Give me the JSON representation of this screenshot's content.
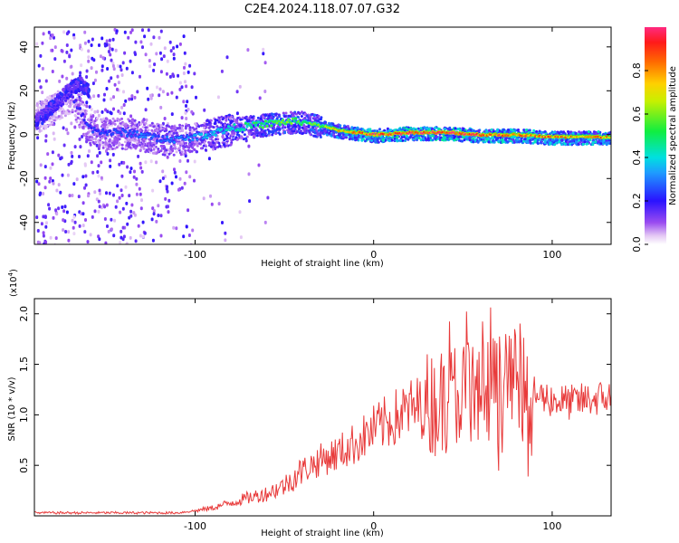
{
  "figure_title": "C2E4.2024.118.07.07.G32",
  "chart_data": [
    {
      "type": "heatmap",
      "title": "C2E4.2024.118.07.07.G32",
      "xlabel": "Height of straight line (km)",
      "ylabel": "Frequency (Hz)",
      "xlim": [
        -190,
        133
      ],
      "ylim": [
        -50,
        49
      ],
      "xticks": [
        -100,
        0,
        100
      ],
      "yticks": [
        -40,
        -20,
        0,
        20,
        40
      ],
      "colorbar": {
        "label": "Normalized spectral amplitude",
        "range": [
          0.0,
          1.0
        ],
        "ticks": [
          0.0,
          0.2,
          0.4,
          0.6,
          0.8
        ],
        "colormap": "rainbow (white/violet low, blue, cyan, green, yellow, orange, red high)"
      },
      "ridge": {
        "description": "dominant frequency ridge centered near 0 Hz",
        "x": [
          -190,
          -180,
          -170,
          -160,
          -150,
          -140,
          -130,
          -120,
          -110,
          -100,
          -90,
          -80,
          -70,
          -60,
          -50,
          -40,
          -30,
          -20,
          -10,
          0,
          20,
          40,
          60,
          80,
          100,
          120,
          133
        ],
        "y": [
          8,
          12,
          18,
          3,
          1,
          1,
          0,
          -2,
          -2,
          -1,
          1,
          3,
          4,
          5,
          6,
          6,
          4,
          2,
          1,
          0,
          1,
          1,
          0,
          0,
          -1,
          -1,
          -1
        ],
        "amplitude": [
          0.15,
          0.18,
          0.2,
          0.25,
          0.25,
          0.28,
          0.3,
          0.3,
          0.32,
          0.35,
          0.4,
          0.45,
          0.5,
          0.55,
          0.6,
          0.55,
          0.65,
          0.75,
          0.85,
          0.95,
          0.95,
          0.95,
          0.9,
          0.9,
          0.85,
          0.85,
          0.85
        ]
      },
      "secondary_branch": {
        "description": "upper branch at negative heights",
        "x": [
          -190,
          -185,
          -180,
          -175,
          -170,
          -165,
          -160
        ],
        "y": [
          6,
          10,
          14,
          18,
          22,
          24,
          20
        ]
      }
    },
    {
      "type": "line",
      "xlabel": "Height of straight line (km)",
      "ylabel": "SNR (10 * v/v)",
      "y_scale_label": "(x10",
      "y_scale_exp": "4",
      "y_scale_close": ")",
      "xlim": [
        -190,
        133
      ],
      "ylim": [
        0,
        2.15
      ],
      "xticks": [
        -100,
        0,
        100
      ],
      "yticks": [
        0.5,
        1.0,
        1.5,
        2.0
      ],
      "ytick_labels": [
        "0.5",
        "1.0",
        "1.5",
        "2.0"
      ],
      "series": [
        {
          "color": "#e83a3a",
          "x": [
            -190,
            -170,
            -150,
            -130,
            -110,
            -100,
            -90,
            -80,
            -70,
            -60,
            -50,
            -40,
            -30,
            -20,
            -10,
            0,
            10,
            20,
            30,
            40,
            50,
            60,
            70,
            80,
            90,
            100,
            110,
            120,
            133
          ],
          "y": [
            0.03,
            0.03,
            0.03,
            0.03,
            0.03,
            0.05,
            0.08,
            0.13,
            0.18,
            0.22,
            0.3,
            0.45,
            0.55,
            0.62,
            0.72,
            0.85,
            0.95,
            1.05,
            1.1,
            1.15,
            1.25,
            1.3,
            1.28,
            1.25,
            1.2,
            1.15,
            1.12,
            1.15,
            1.18
          ]
        }
      ]
    }
  ]
}
